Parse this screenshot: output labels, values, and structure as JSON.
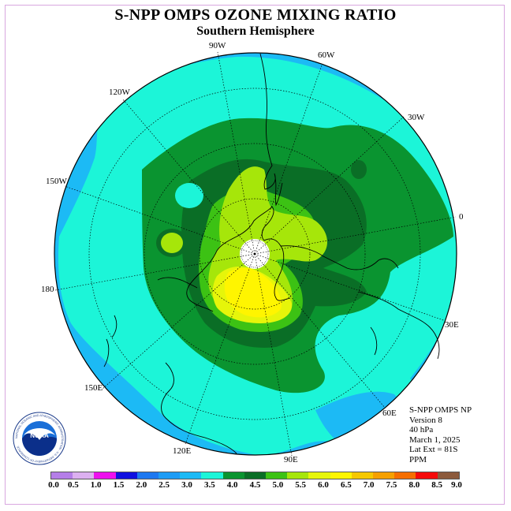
{
  "header": {
    "title": "S-NPP OMPS OZONE MIXING RATIO",
    "subtitle": "Southern Hemisphere"
  },
  "map": {
    "longitude_labels": [
      "90W",
      "60W",
      "30W",
      "0",
      "30E",
      "60E",
      "90E",
      "120E",
      "150E",
      "180",
      "150W",
      "120W"
    ],
    "colors": {
      "ocean_3_0": "#1cbaf5",
      "band_3_5": "#1cf5d8",
      "band_4_0": "#0a9430",
      "band_4_5": "#0a6e26",
      "band_5_0": "#3cc214",
      "band_5_5": "#a6e60a",
      "band_6_0": "#e6f50a",
      "band_6_5": "#fff500",
      "pole_mask": "#ffffff"
    }
  },
  "info": {
    "line1": "S-NPP OMPS NP",
    "line2": "Version 8",
    "line3": "40 hPa",
    "line4": "March 1, 2025",
    "line5": "Lat Ext = 81S",
    "line6": "PPM"
  },
  "colorbar": {
    "colors": [
      "#b57ee8",
      "#dcb0f0",
      "#ee10ee",
      "#1010e0",
      "#1e78f0",
      "#1e9cf5",
      "#1cbaf5",
      "#1cf5d8",
      "#0a9430",
      "#0a6e26",
      "#3cc214",
      "#a6e60a",
      "#e6f50a",
      "#fff500",
      "#f5c800",
      "#f5a000",
      "#f56e00",
      "#f50a0a",
      "#8c5a3c"
    ],
    "ticks": [
      "0.0",
      "0.5",
      "1.0",
      "1.5",
      "2.0",
      "2.5",
      "3.0",
      "3.5",
      "4.0",
      "4.5",
      "5.0",
      "5.5",
      "6.0",
      "6.5",
      "7.0",
      "7.5",
      "8.0",
      "8.5",
      "9.0"
    ]
  },
  "logo": {
    "text": "NOAA",
    "ring_text": "NATIONAL OCEANIC AND ATMOSPHERIC ADMINISTRATION · U.S. DEPARTMENT OF COMMERCE"
  }
}
